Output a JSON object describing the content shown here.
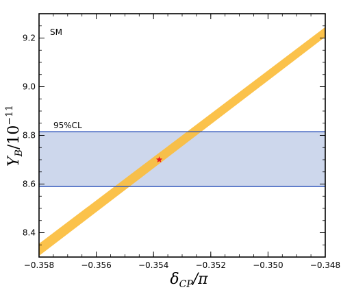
{
  "chart_data": {
    "type": "line",
    "xlim": [
      -0.358,
      -0.348
    ],
    "ylim": [
      8.3,
      9.3
    ],
    "x_ticks": [
      "−0.358",
      "−0.356",
      "−0.354",
      "−0.352",
      "−0.350",
      "−0.348"
    ],
    "x_tick_values": [
      -0.358,
      -0.356,
      -0.354,
      -0.352,
      -0.35,
      -0.348
    ],
    "y_ticks": [
      "8.4",
      "8.6",
      "8.8",
      "9.0",
      "9.2"
    ],
    "y_tick_values": [
      8.4,
      8.6,
      8.8,
      9.0,
      9.2
    ],
    "xlabel": {
      "main": "δ",
      "sub": "CP",
      "tail": "/π"
    },
    "ylabel": {
      "main": "Y",
      "sub": "B",
      "mid": "/10",
      "sup": "−11"
    },
    "model_label": "SM",
    "band": {
      "label": "95%CL",
      "y_low": 8.59,
      "y_high": 8.815,
      "fill_color": "#cdd7ec",
      "edge_color": "#2850b8"
    },
    "series": [
      {
        "style": "band",
        "color": "#fbbd3c",
        "x": [
          -0.358,
          -0.348
        ],
        "y_low": [
          8.305,
          9.205
        ],
        "y_high": [
          8.355,
          9.245
        ]
      }
    ],
    "points": [
      {
        "style": "star",
        "x": -0.3538,
        "y": 8.7,
        "color": "#e8141e"
      }
    ],
    "colors": {
      "model_label": "#e8141e",
      "band_label": "#2850b8"
    },
    "grid": false
  }
}
